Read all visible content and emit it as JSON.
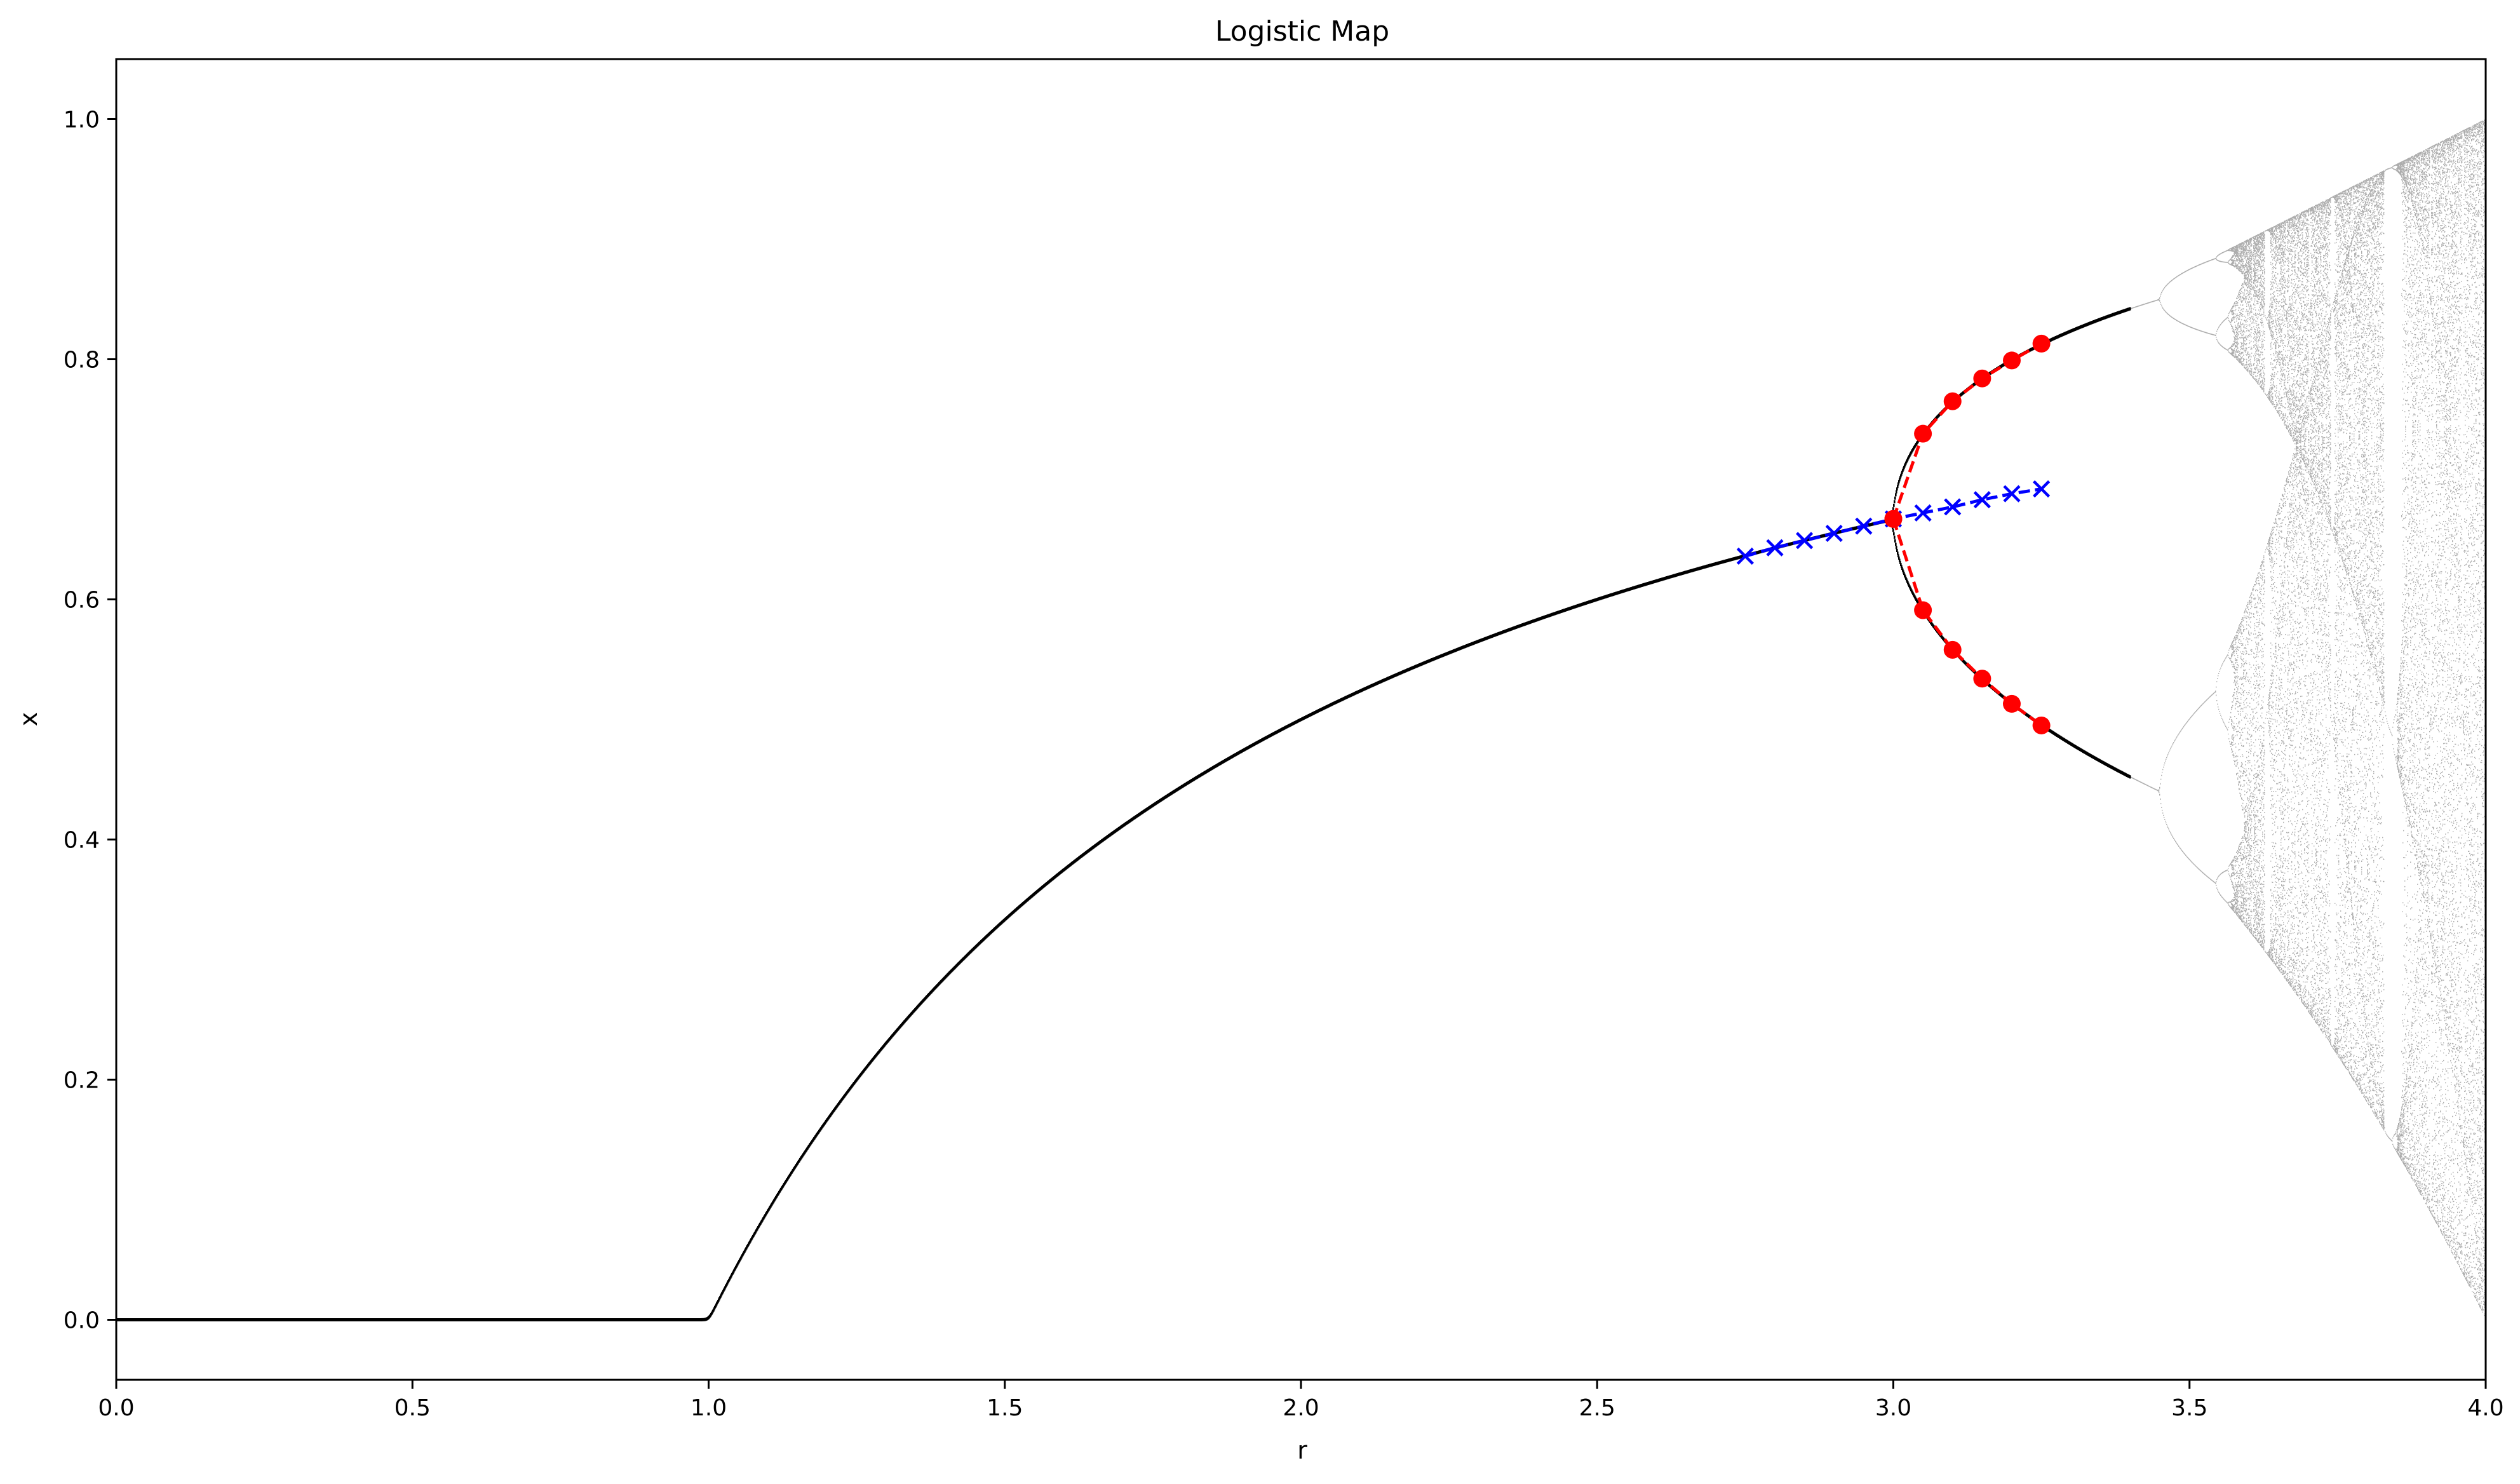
{
  "chart_data": {
    "type": "scatter",
    "title": "Logistic Map",
    "xlabel": "r",
    "ylabel": "x",
    "xlim": [
      0.0,
      4.0
    ],
    "ylim": [
      -0.05,
      1.05
    ],
    "grid": false,
    "x_ticks": [
      "0.0",
      "0.5",
      "1.0",
      "1.5",
      "2.0",
      "2.5",
      "3.0",
      "3.5",
      "4.0"
    ],
    "y_ticks": [
      "0.0",
      "0.2",
      "0.4",
      "0.6",
      "0.8",
      "1.0"
    ],
    "bifurcation": {
      "color": "#000000",
      "r_min": 0.0,
      "r_max": 4.0
    },
    "series": [
      {
        "marker": "x",
        "linestyle": "dashed",
        "color": "#0000ff",
        "x": [
          2.75,
          2.8,
          2.85,
          2.9,
          2.95,
          3.0,
          3.05,
          3.1,
          3.15,
          3.2,
          3.25
        ],
        "y": [
          0.636,
          0.643,
          0.649,
          0.655,
          0.661,
          0.667,
          0.672,
          0.677,
          0.683,
          0.688,
          0.692
        ]
      },
      {
        "marker": "o",
        "linestyle": "dashed",
        "color": "#ff0000",
        "x": [
          3.0,
          3.05,
          3.1,
          3.15,
          3.2,
          3.25
        ],
        "y": [
          0.667,
          0.738,
          0.765,
          0.784,
          0.799,
          0.813
        ]
      },
      {
        "marker": "o",
        "linestyle": "dashed",
        "color": "#ff0000",
        "x": [
          3.0,
          3.05,
          3.1,
          3.15,
          3.2,
          3.25
        ],
        "y": [
          0.667,
          0.591,
          0.558,
          0.534,
          0.513,
          0.495
        ]
      }
    ]
  }
}
